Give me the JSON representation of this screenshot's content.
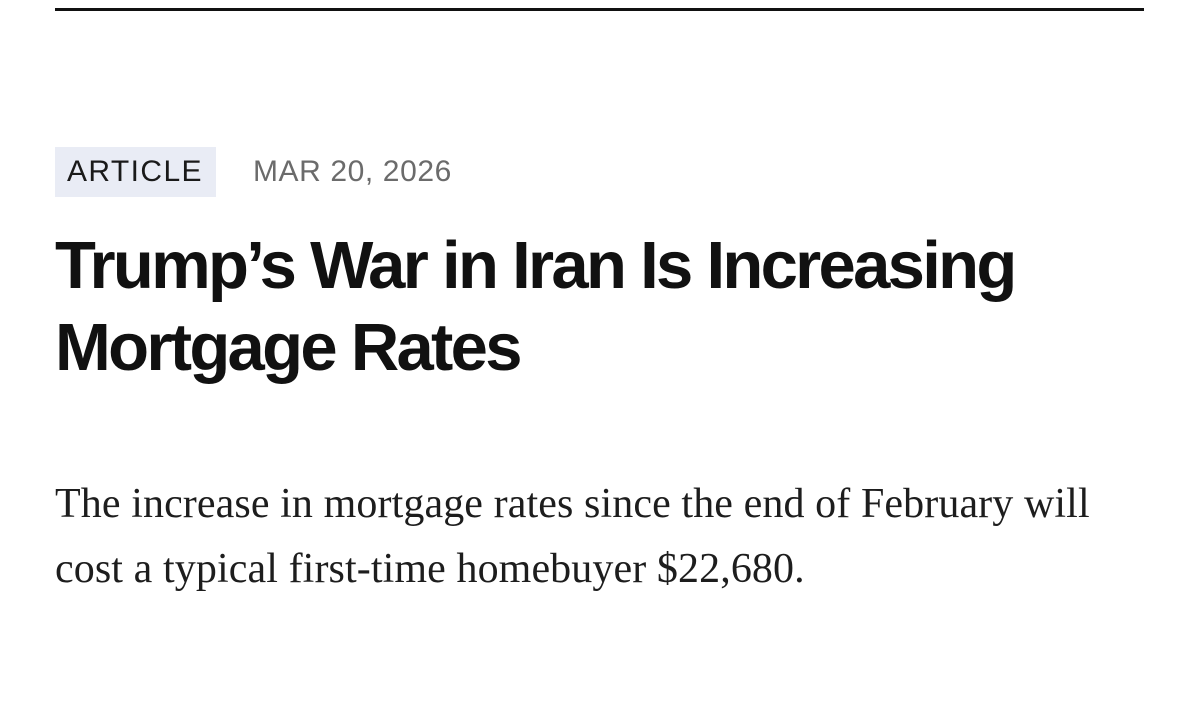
{
  "article": {
    "tag": "ARTICLE",
    "date": "MAR 20, 2026",
    "headline": "Trump’s War in Iran Is Increasing Mortgage Rates",
    "dek": "The increase in mortgage rates since the end of February will cost a typical first-time homebuyer $22,680."
  },
  "colors": {
    "tag_background": "#e9ecf5",
    "headline_text": "#111111",
    "date_text": "#6b6b6b"
  }
}
